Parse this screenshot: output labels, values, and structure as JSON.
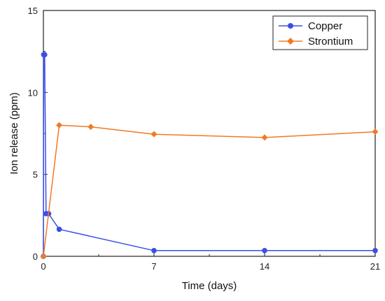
{
  "chart_data": {
    "type": "line",
    "title": "",
    "xlabel": "Time (days)",
    "ylabel": "Ion release (ppm)",
    "xlim": [
      0,
      21
    ],
    "ylim": [
      0,
      15
    ],
    "xticks": [
      0,
      7,
      14,
      21
    ],
    "yticks": [
      0,
      5,
      10,
      15
    ],
    "grid": false,
    "legend_position": "top-right",
    "series": [
      {
        "name": "Copper",
        "color": "#3a4fe6",
        "marker": "circle",
        "points": [
          [
            0,
            0
          ],
          [
            0.02,
            12.3
          ],
          [
            0.08,
            12.3
          ],
          [
            0.17,
            2.6
          ],
          [
            0.33,
            2.6
          ],
          [
            1,
            1.65
          ],
          [
            7,
            0.35
          ],
          [
            14,
            0.35
          ],
          [
            21,
            0.35
          ]
        ]
      },
      {
        "name": "Strontium",
        "color": "#f07a24",
        "marker": "diamond",
        "points": [
          [
            0,
            0
          ],
          [
            1,
            8.0
          ],
          [
            3,
            7.9
          ],
          [
            7,
            7.45
          ],
          [
            14,
            7.25
          ],
          [
            21,
            7.6
          ]
        ]
      }
    ]
  }
}
